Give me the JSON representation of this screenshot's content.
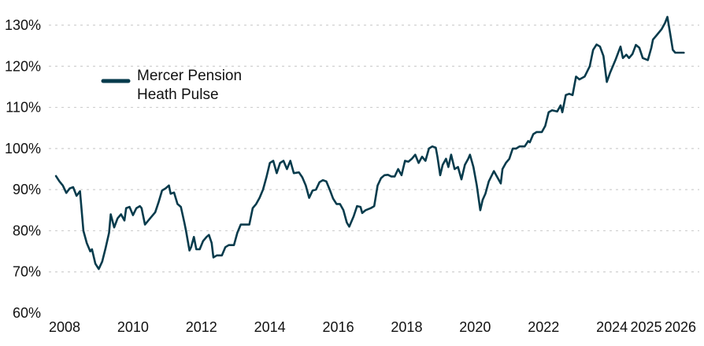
{
  "chart_data": {
    "type": "line",
    "title": "",
    "xlabel": "",
    "ylabel": "",
    "ylim": [
      60,
      130
    ],
    "xlim": [
      2007.7,
      2026.3
    ],
    "grid": "horizontal-dashed",
    "legend_position": "top-left",
    "y_ticks": [
      "60%",
      "70%",
      "80%",
      "90%",
      "100%",
      "110%",
      "120%",
      "130%"
    ],
    "x_ticks": [
      {
        "label": "2008",
        "value": 2008
      },
      {
        "label": "2010",
        "value": 2010
      },
      {
        "label": "2012",
        "value": 2012
      },
      {
        "label": "2014",
        "value": 2014
      },
      {
        "label": "2016",
        "value": 2016
      },
      {
        "label": "2018",
        "value": 2018
      },
      {
        "label": "2020",
        "value": 2020
      },
      {
        "label": "2022",
        "value": 2022
      },
      {
        "label": "2024",
        "value": 2024
      },
      {
        "label": "2025",
        "value": 2025
      },
      {
        "label": "2026",
        "value": 2026
      }
    ],
    "series": [
      {
        "name": "Mercer Pension Heath Pulse",
        "color": "#073b4c",
        "points": [
          [
            2007.75,
            93.3
          ],
          [
            2007.85,
            92.0
          ],
          [
            2007.95,
            91.0
          ],
          [
            2008.05,
            89.2
          ],
          [
            2008.15,
            90.3
          ],
          [
            2008.25,
            90.6
          ],
          [
            2008.35,
            88.5
          ],
          [
            2008.45,
            89.6
          ],
          [
            2008.55,
            80.0
          ],
          [
            2008.65,
            77.0
          ],
          [
            2008.75,
            75.0
          ],
          [
            2008.8,
            75.5
          ],
          [
            2008.9,
            72.0
          ],
          [
            2009.0,
            70.7
          ],
          [
            2009.1,
            72.5
          ],
          [
            2009.2,
            75.8
          ],
          [
            2009.3,
            79.5
          ],
          [
            2009.35,
            84.0
          ],
          [
            2009.45,
            80.8
          ],
          [
            2009.55,
            83.0
          ],
          [
            2009.65,
            84.0
          ],
          [
            2009.75,
            82.5
          ],
          [
            2009.8,
            85.5
          ],
          [
            2009.9,
            85.8
          ],
          [
            2010.0,
            83.8
          ],
          [
            2010.1,
            85.5
          ],
          [
            2010.2,
            86.0
          ],
          [
            2010.25,
            85.5
          ],
          [
            2010.35,
            81.5
          ],
          [
            2010.5,
            83.0
          ],
          [
            2010.65,
            84.5
          ],
          [
            2010.75,
            87.0
          ],
          [
            2010.85,
            89.8
          ],
          [
            2010.95,
            90.3
          ],
          [
            2011.05,
            91.0
          ],
          [
            2011.1,
            89.0
          ],
          [
            2011.2,
            89.3
          ],
          [
            2011.3,
            86.5
          ],
          [
            2011.4,
            85.8
          ],
          [
            2011.5,
            82.0
          ],
          [
            2011.55,
            80.0
          ],
          [
            2011.65,
            75.2
          ],
          [
            2011.7,
            76.0
          ],
          [
            2011.78,
            78.5
          ],
          [
            2011.85,
            75.5
          ],
          [
            2011.95,
            75.5
          ],
          [
            2012.05,
            77.5
          ],
          [
            2012.15,
            78.5
          ],
          [
            2012.22,
            79.0
          ],
          [
            2012.3,
            77.0
          ],
          [
            2012.35,
            73.5
          ],
          [
            2012.45,
            74.0
          ],
          [
            2012.6,
            74.0
          ],
          [
            2012.7,
            76.0
          ],
          [
            2012.8,
            76.5
          ],
          [
            2012.95,
            76.5
          ],
          [
            2013.05,
            79.5
          ],
          [
            2013.15,
            81.5
          ],
          [
            2013.3,
            81.5
          ],
          [
            2013.4,
            81.5
          ],
          [
            2013.5,
            85.5
          ],
          [
            2013.6,
            86.5
          ],
          [
            2013.7,
            88.0
          ],
          [
            2013.8,
            90.0
          ],
          [
            2013.9,
            93.0
          ],
          [
            2014.0,
            96.5
          ],
          [
            2014.1,
            97.0
          ],
          [
            2014.2,
            94.0
          ],
          [
            2014.3,
            96.5
          ],
          [
            2014.4,
            97.0
          ],
          [
            2014.5,
            95.0
          ],
          [
            2014.6,
            97.0
          ],
          [
            2014.7,
            94.0
          ],
          [
            2014.85,
            94.2
          ],
          [
            2014.95,
            93.0
          ],
          [
            2015.05,
            91.0
          ],
          [
            2015.15,
            88.0
          ],
          [
            2015.25,
            89.8
          ],
          [
            2015.35,
            90.0
          ],
          [
            2015.45,
            91.8
          ],
          [
            2015.55,
            92.3
          ],
          [
            2015.65,
            92.0
          ],
          [
            2015.75,
            90.0
          ],
          [
            2015.85,
            87.8
          ],
          [
            2015.95,
            86.5
          ],
          [
            2016.05,
            86.5
          ],
          [
            2016.15,
            85.0
          ],
          [
            2016.25,
            82.0
          ],
          [
            2016.32,
            81.0
          ],
          [
            2016.45,
            83.5
          ],
          [
            2016.55,
            86.0
          ],
          [
            2016.65,
            85.8
          ],
          [
            2016.7,
            84.3
          ],
          [
            2016.8,
            85.0
          ],
          [
            2016.95,
            85.5
          ],
          [
            2017.05,
            86.0
          ],
          [
            2017.15,
            91.0
          ],
          [
            2017.25,
            92.8
          ],
          [
            2017.35,
            93.5
          ],
          [
            2017.45,
            93.6
          ],
          [
            2017.55,
            93.2
          ],
          [
            2017.65,
            93.2
          ],
          [
            2017.75,
            95.0
          ],
          [
            2017.85,
            93.5
          ],
          [
            2017.95,
            97.0
          ],
          [
            2018.05,
            96.8
          ],
          [
            2018.15,
            97.5
          ],
          [
            2018.25,
            98.5
          ],
          [
            2018.35,
            96.5
          ],
          [
            2018.45,
            98.0
          ],
          [
            2018.55,
            97.0
          ],
          [
            2018.65,
            100.0
          ],
          [
            2018.75,
            100.5
          ],
          [
            2018.85,
            100.2
          ],
          [
            2018.9,
            98.0
          ],
          [
            2018.98,
            93.5
          ],
          [
            2019.05,
            96.0
          ],
          [
            2019.15,
            97.5
          ],
          [
            2019.22,
            95.5
          ],
          [
            2019.3,
            98.5
          ],
          [
            2019.4,
            95.0
          ],
          [
            2019.5,
            95.5
          ],
          [
            2019.6,
            92.5
          ],
          [
            2019.7,
            96.0
          ],
          [
            2019.8,
            97.5
          ],
          [
            2019.85,
            98.5
          ],
          [
            2019.95,
            95.5
          ],
          [
            2020.05,
            91.0
          ],
          [
            2020.15,
            85.0
          ],
          [
            2020.22,
            87.5
          ],
          [
            2020.3,
            89.0
          ],
          [
            2020.4,
            92.0
          ],
          [
            2020.55,
            94.5
          ],
          [
            2020.65,
            93.0
          ],
          [
            2020.75,
            91.5
          ],
          [
            2020.8,
            95.0
          ],
          [
            2020.9,
            96.5
          ],
          [
            2021.0,
            97.5
          ],
          [
            2021.1,
            100.0
          ],
          [
            2021.2,
            100.0
          ],
          [
            2021.3,
            100.5
          ],
          [
            2021.45,
            100.5
          ],
          [
            2021.55,
            101.8
          ],
          [
            2021.6,
            101.5
          ],
          [
            2021.7,
            103.5
          ],
          [
            2021.8,
            104.0
          ],
          [
            2021.95,
            104.0
          ],
          [
            2022.05,
            105.5
          ],
          [
            2022.15,
            108.8
          ],
          [
            2022.25,
            109.3
          ],
          [
            2022.4,
            109.0
          ],
          [
            2022.5,
            110.5
          ],
          [
            2022.55,
            108.8
          ],
          [
            2022.65,
            113.0
          ],
          [
            2022.75,
            113.3
          ],
          [
            2022.85,
            113.0
          ],
          [
            2022.95,
            117.5
          ],
          [
            2023.05,
            116.8
          ],
          [
            2023.2,
            117.5
          ],
          [
            2023.35,
            120.0
          ],
          [
            2023.45,
            124.0
          ],
          [
            2023.55,
            125.3
          ],
          [
            2023.65,
            124.8
          ],
          [
            2023.75,
            122.5
          ],
          [
            2023.85,
            116.2
          ],
          [
            2023.95,
            118.5
          ],
          [
            2024.1,
            121.5
          ],
          [
            2024.25,
            124.8
          ],
          [
            2024.32,
            122.0
          ],
          [
            2024.42,
            122.8
          ],
          [
            2024.5,
            122.0
          ],
          [
            2024.6,
            123.0
          ],
          [
            2024.7,
            125.2
          ],
          [
            2024.8,
            124.5
          ],
          [
            2024.9,
            122.0
          ],
          [
            2025.05,
            121.5
          ],
          [
            2025.15,
            124.5
          ],
          [
            2025.2,
            126.5
          ],
          [
            2025.3,
            127.5
          ],
          [
            2025.45,
            129.0
          ],
          [
            2025.55,
            130.5
          ],
          [
            2025.62,
            132.0
          ],
          [
            2025.7,
            128.0
          ],
          [
            2025.78,
            124.0
          ],
          [
            2025.85,
            123.3
          ],
          [
            2026.1,
            123.3
          ]
        ]
      }
    ]
  }
}
